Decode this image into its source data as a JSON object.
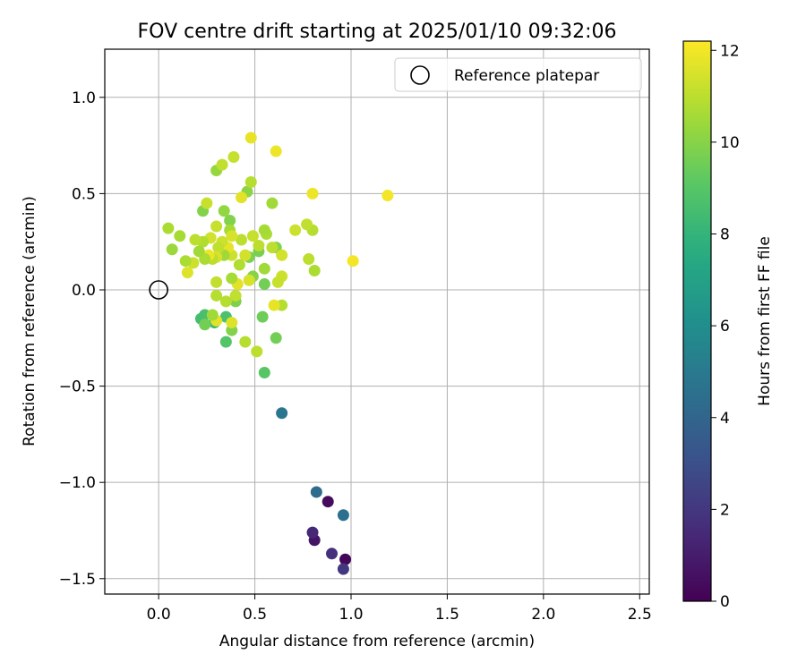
{
  "chart_data": {
    "type": "scatter",
    "title": "FOV centre drift starting at 2025/01/10 09:32:06",
    "xlabel": "Angular distance from reference (arcmin)",
    "ylabel": "Rotation from reference (arcmin)",
    "xlim": [
      -0.28,
      2.55
    ],
    "ylim": [
      -1.58,
      1.25
    ],
    "xticks": [
      0.0,
      0.5,
      1.0,
      1.5,
      2.0,
      2.5
    ],
    "xtick_labels": [
      "0.0",
      "0.5",
      "1.0",
      "1.5",
      "2.0",
      "2.5"
    ],
    "yticks": [
      -1.5,
      -1.0,
      -0.5,
      0.0,
      0.5,
      1.0
    ],
    "ytick_labels": [
      "−1.5",
      "−1.0",
      "−0.5",
      "0.0",
      "0.5",
      "1.0"
    ],
    "grid": true,
    "legend": {
      "position": "top-right",
      "entries": [
        "Reference platepar"
      ]
    },
    "reference_point": {
      "x": 0.0,
      "y": 0.0
    },
    "colorbar": {
      "label": "Hours from first FF file",
      "colormap": "viridis",
      "range": [
        0,
        12.2
      ],
      "ticks": [
        0,
        2,
        4,
        6,
        8,
        10,
        12
      ],
      "tick_labels": [
        "0",
        "2",
        "4",
        "6",
        "8",
        "10",
        "12"
      ]
    },
    "points": [
      {
        "x": 0.97,
        "y": -1.4,
        "t": 0.2
      },
      {
        "x": 0.88,
        "y": -1.1,
        "t": 0.4
      },
      {
        "x": 0.81,
        "y": -1.3,
        "t": 0.7
      },
      {
        "x": 0.8,
        "y": -1.26,
        "t": 1.4
      },
      {
        "x": 0.9,
        "y": -1.37,
        "t": 1.7
      },
      {
        "x": 0.96,
        "y": -1.45,
        "t": 2.0
      },
      {
        "x": 0.82,
        "y": -1.05,
        "t": 4.3
      },
      {
        "x": 0.96,
        "y": -1.17,
        "t": 4.5
      },
      {
        "x": 0.64,
        "y": -0.64,
        "t": 4.8
      },
      {
        "x": 0.22,
        "y": -0.15,
        "t": 8.5
      },
      {
        "x": 0.29,
        "y": -0.17,
        "t": 8.3
      },
      {
        "x": 0.24,
        "y": -0.13,
        "t": 8.6
      },
      {
        "x": 0.35,
        "y": -0.14,
        "t": 8.7
      },
      {
        "x": 0.35,
        "y": -0.27,
        "t": 8.9
      },
      {
        "x": 0.55,
        "y": -0.43,
        "t": 9.0
      },
      {
        "x": 0.24,
        "y": -0.18,
        "t": 9.6
      },
      {
        "x": 0.38,
        "y": -0.21,
        "t": 9.9
      },
      {
        "x": 0.61,
        "y": -0.25,
        "t": 9.6
      },
      {
        "x": 0.54,
        "y": -0.14,
        "t": 9.5
      },
      {
        "x": 0.4,
        "y": -0.06,
        "t": 9.8
      },
      {
        "x": 0.55,
        "y": 0.03,
        "t": 9.6
      },
      {
        "x": 0.52,
        "y": 0.2,
        "t": 9.7
      },
      {
        "x": 0.61,
        "y": 0.22,
        "t": 9.9
      },
      {
        "x": 0.47,
        "y": 0.17,
        "t": 9.8
      },
      {
        "x": 0.37,
        "y": 0.36,
        "t": 9.9
      },
      {
        "x": 0.23,
        "y": 0.41,
        "t": 9.9
      },
      {
        "x": 0.49,
        "y": 0.07,
        "t": 10.0
      },
      {
        "x": 0.3,
        "y": 0.62,
        "t": 10.3
      },
      {
        "x": 0.34,
        "y": 0.41,
        "t": 10.2
      },
      {
        "x": 0.46,
        "y": 0.51,
        "t": 10.1
      },
      {
        "x": 0.59,
        "y": 0.45,
        "t": 10.5
      },
      {
        "x": 0.48,
        "y": 0.56,
        "t": 10.9
      },
      {
        "x": 0.39,
        "y": 0.69,
        "t": 11.2
      },
      {
        "x": 0.33,
        "y": 0.65,
        "t": 11.1
      },
      {
        "x": 0.48,
        "y": 0.79,
        "t": 11.8
      },
      {
        "x": 0.61,
        "y": 0.72,
        "t": 11.9
      },
      {
        "x": 0.8,
        "y": 0.5,
        "t": 11.9
      },
      {
        "x": 1.19,
        "y": 0.49,
        "t": 12.0
      },
      {
        "x": 1.01,
        "y": 0.15,
        "t": 12.0
      },
      {
        "x": 0.81,
        "y": 0.1,
        "t": 10.7
      },
      {
        "x": 0.78,
        "y": 0.16,
        "t": 11.0
      },
      {
        "x": 0.8,
        "y": 0.31,
        "t": 10.9
      },
      {
        "x": 0.77,
        "y": 0.34,
        "t": 11.1
      },
      {
        "x": 0.71,
        "y": 0.31,
        "t": 11.3
      },
      {
        "x": 0.64,
        "y": 0.18,
        "t": 11.4
      },
      {
        "x": 0.64,
        "y": 0.07,
        "t": 11.3
      },
      {
        "x": 0.64,
        "y": -0.08,
        "t": 10.9
      },
      {
        "x": 0.6,
        "y": -0.08,
        "t": 11.8
      },
      {
        "x": 0.62,
        "y": 0.04,
        "t": 11.2
      },
      {
        "x": 0.59,
        "y": 0.22,
        "t": 11.0
      },
      {
        "x": 0.56,
        "y": 0.29,
        "t": 10.7
      },
      {
        "x": 0.55,
        "y": 0.31,
        "t": 10.6
      },
      {
        "x": 0.55,
        "y": 0.11,
        "t": 10.5
      },
      {
        "x": 0.52,
        "y": 0.23,
        "t": 11.0
      },
      {
        "x": 0.49,
        "y": 0.28,
        "t": 11.2
      },
      {
        "x": 0.47,
        "y": 0.05,
        "t": 11.5
      },
      {
        "x": 0.45,
        "y": 0.18,
        "t": 11.4
      },
      {
        "x": 0.43,
        "y": 0.26,
        "t": 11.0
      },
      {
        "x": 0.43,
        "y": 0.48,
        "t": 11.7
      },
      {
        "x": 0.42,
        "y": 0.13,
        "t": 10.8
      },
      {
        "x": 0.41,
        "y": 0.03,
        "t": 11.7
      },
      {
        "x": 0.4,
        "y": -0.03,
        "t": 11.1
      },
      {
        "x": 0.38,
        "y": 0.06,
        "t": 10.6
      },
      {
        "x": 0.38,
        "y": 0.18,
        "t": 11.3
      },
      {
        "x": 0.38,
        "y": -0.17,
        "t": 11.6
      },
      {
        "x": 0.37,
        "y": 0.31,
        "t": 10.6
      },
      {
        "x": 0.36,
        "y": 0.22,
        "t": 11.8
      },
      {
        "x": 0.35,
        "y": -0.06,
        "t": 10.9
      },
      {
        "x": 0.34,
        "y": 0.18,
        "t": 10.5
      },
      {
        "x": 0.33,
        "y": 0.25,
        "t": 11.3
      },
      {
        "x": 0.31,
        "y": 0.22,
        "t": 11.1
      },
      {
        "x": 0.3,
        "y": 0.17,
        "t": 11.5
      },
      {
        "x": 0.3,
        "y": 0.33,
        "t": 11.2
      },
      {
        "x": 0.3,
        "y": 0.04,
        "t": 11.1
      },
      {
        "x": 0.3,
        "y": -0.03,
        "t": 10.9
      },
      {
        "x": 0.3,
        "y": -0.16,
        "t": 11.7
      },
      {
        "x": 0.28,
        "y": 0.16,
        "t": 11.0
      },
      {
        "x": 0.27,
        "y": 0.27,
        "t": 11.4
      },
      {
        "x": 0.26,
        "y": 0.18,
        "t": 11.9
      },
      {
        "x": 0.25,
        "y": 0.45,
        "t": 11.2
      },
      {
        "x": 0.24,
        "y": 0.16,
        "t": 10.7
      },
      {
        "x": 0.23,
        "y": 0.25,
        "t": 10.8
      },
      {
        "x": 0.21,
        "y": 0.2,
        "t": 10.5
      },
      {
        "x": 0.19,
        "y": 0.26,
        "t": 11.0
      },
      {
        "x": 0.18,
        "y": 0.14,
        "t": 11.3
      },
      {
        "x": 0.15,
        "y": 0.09,
        "t": 11.6
      },
      {
        "x": 0.14,
        "y": 0.15,
        "t": 10.7
      },
      {
        "x": 0.11,
        "y": 0.28,
        "t": 10.6
      },
      {
        "x": 0.07,
        "y": 0.21,
        "t": 10.4
      },
      {
        "x": 0.05,
        "y": 0.32,
        "t": 10.7
      },
      {
        "x": 0.38,
        "y": 0.28,
        "t": 11.5
      },
      {
        "x": 0.45,
        "y": -0.27,
        "t": 10.9
      },
      {
        "x": 0.51,
        "y": -0.32,
        "t": 11.0
      },
      {
        "x": 0.28,
        "y": -0.13,
        "t": 10.5
      }
    ]
  }
}
